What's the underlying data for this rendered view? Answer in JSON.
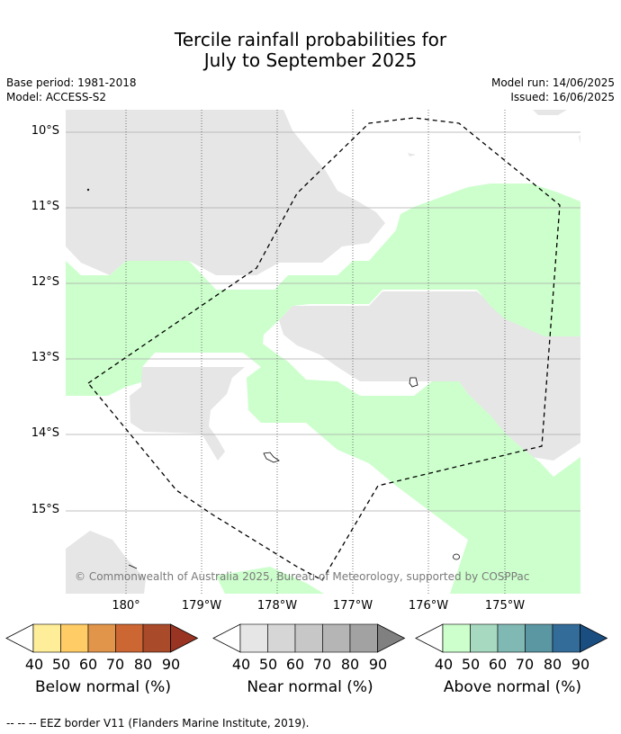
{
  "title_line1": "Tercile rainfall probabilities for",
  "title_line2": "July to September 2025",
  "meta": {
    "base_period": "Base period: 1981-2018",
    "model": "Model: ACCESS-S2",
    "model_run": "Model run: 14/06/2025",
    "issued": "Issued: 16/06/2025"
  },
  "map": {
    "lat_labels": [
      "10°S",
      "11°S",
      "12°S",
      "13°S",
      "14°S",
      "15°S"
    ],
    "lon_labels": [
      "180°",
      "179°W",
      "178°W",
      "177°W",
      "176°W",
      "175°W"
    ],
    "copyright": "© Commonwealth of Australia 2025, Bureau of Meteorology, supported by COSPPac",
    "colors": {
      "near_normal_40": "#e6e6e6",
      "above_normal_40": "#ccffcc",
      "background": "#ffffff"
    }
  },
  "colorbars": [
    {
      "title": "Below normal (%)",
      "ticks": [
        "40",
        "50",
        "60",
        "70",
        "80",
        "90"
      ],
      "colors": [
        "#ffee99",
        "#ffcc66",
        "#e0954a",
        "#cc6633",
        "#a94a2a",
        "#993322"
      ]
    },
    {
      "title": "Near normal (%)",
      "ticks": [
        "40",
        "50",
        "60",
        "70",
        "80",
        "90"
      ],
      "colors": [
        "#e6e6e6",
        "#d6d6d6",
        "#c7c7c7",
        "#b5b5b5",
        "#a2a2a2",
        "#808080"
      ]
    },
    {
      "title": "Above normal (%)",
      "ticks": [
        "40",
        "50",
        "60",
        "70",
        "80",
        "90"
      ],
      "colors": [
        "#ccffcc",
        "#a6d9bf",
        "#80b8b3",
        "#5b96a3",
        "#336b99",
        "#1a4d80"
      ]
    }
  ],
  "footnote": "--  --  -- EEZ border V11 (Flanders Marine Institute, 2019)."
}
